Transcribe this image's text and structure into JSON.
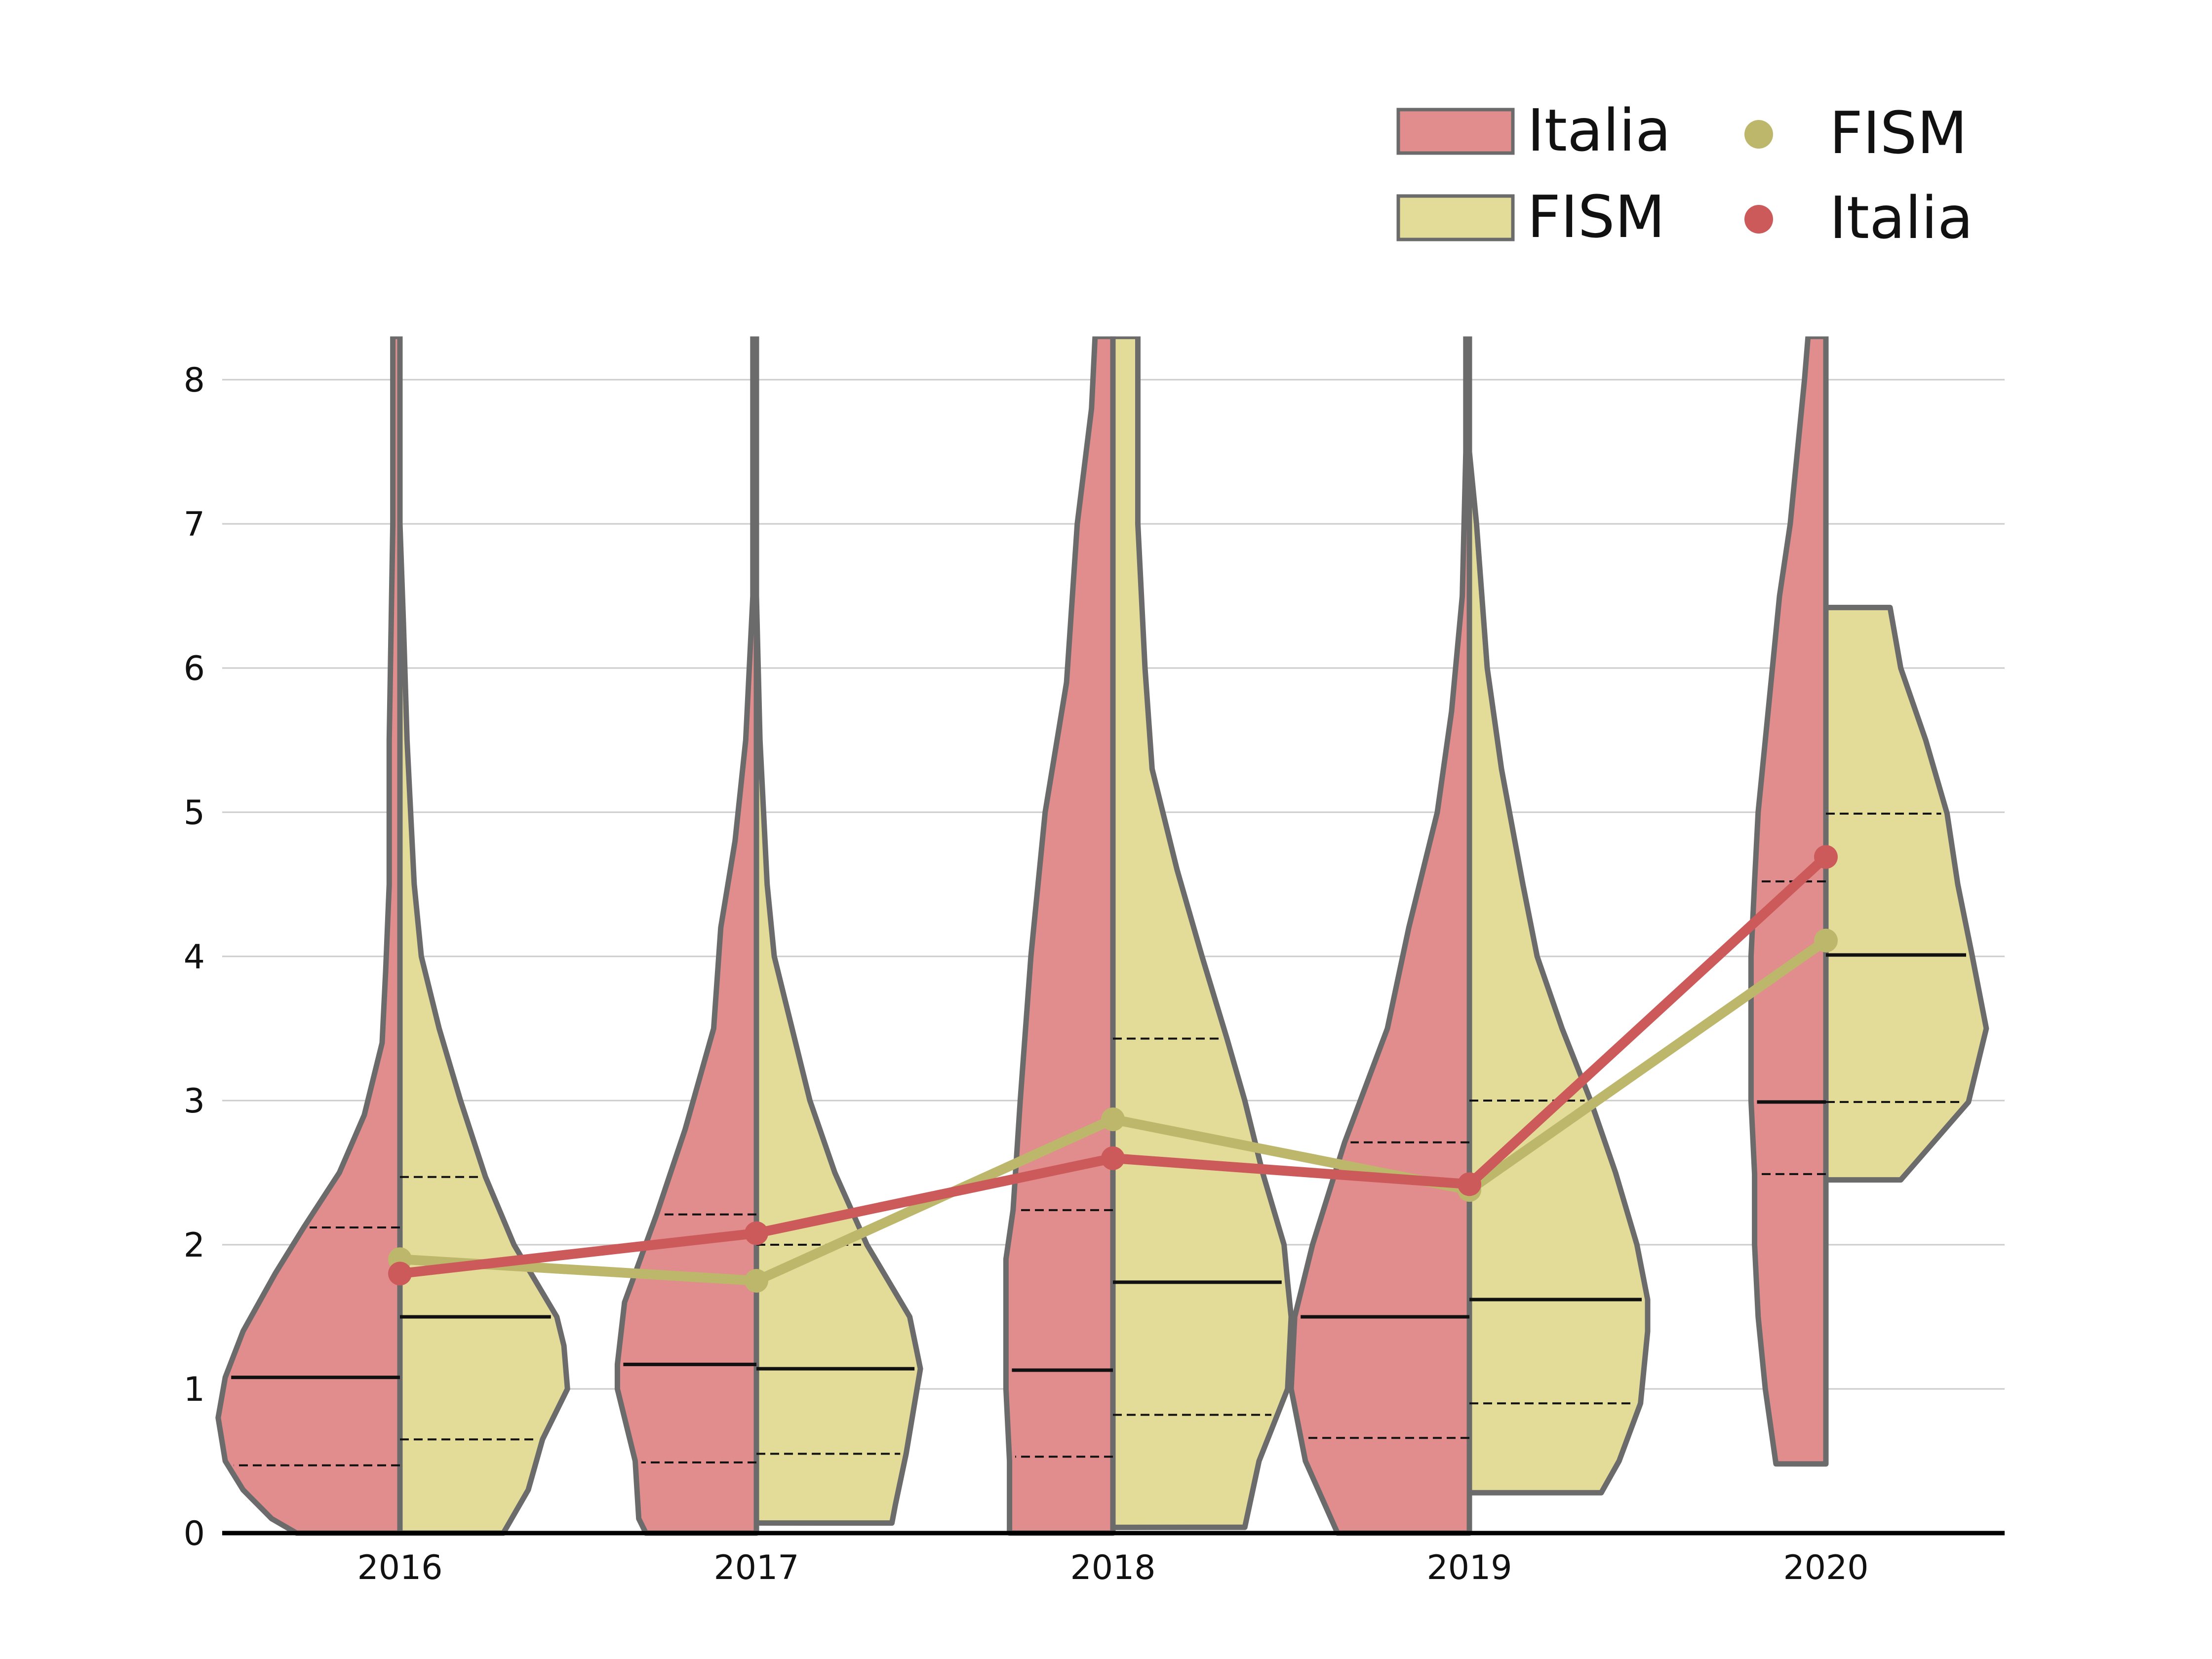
{
  "chart_data": {
    "type": "violin",
    "categories": [
      "2016",
      "2017",
      "2018",
      "2019",
      "2020"
    ],
    "ylim": [
      0,
      8.3
    ],
    "yticks": [
      "0",
      "1",
      "2",
      "3",
      "4",
      "5",
      "6",
      "7",
      "8"
    ],
    "grid": true,
    "legend_position": "top-right",
    "colors": {
      "italia_fill": "#e28d8d",
      "fism_fill": "#e2dc98",
      "violin_edge": "#6b6b6b",
      "italia_line": "#cd5a5a",
      "fism_line": "#bdb76b",
      "grid": "#cccccc",
      "axis": "#000000"
    },
    "legend": {
      "violins": [
        {
          "label": "Italia",
          "series": "italia"
        },
        {
          "label": "FISM",
          "series": "fism"
        }
      ],
      "lines": [
        {
          "label": "FISM",
          "series": "fism"
        },
        {
          "label": "Italia",
          "series": "italia"
        }
      ]
    },
    "mean_lines": [
      {
        "name": "Italia",
        "series": "italia",
        "values": [
          1.8,
          2.08,
          2.6,
          2.42,
          4.69
        ]
      },
      {
        "name": "FISM",
        "series": "fism",
        "values": [
          1.9,
          1.75,
          2.87,
          2.38,
          4.11
        ]
      }
    ],
    "violins": [
      {
        "category": "2016",
        "italia": {
          "quartiles": [
            0.47,
            1.08,
            2.12
          ],
          "profile": [
            [
              0,
              0.29
            ],
            [
              0.1,
              0.36
            ],
            [
              0.3,
              0.44
            ],
            [
              0.5,
              0.49
            ],
            [
              0.8,
              0.51
            ],
            [
              1.08,
              0.49
            ],
            [
              1.4,
              0.44
            ],
            [
              1.8,
              0.35
            ],
            [
              2.12,
              0.27
            ],
            [
              2.5,
              0.17
            ],
            [
              2.9,
              0.1
            ],
            [
              3.4,
              0.05
            ],
            [
              3.9,
              0.04
            ],
            [
              4.5,
              0.03
            ],
            [
              5.5,
              0.03
            ],
            [
              7,
              0.02
            ],
            [
              8.3,
              0.02
            ]
          ]
        },
        "fism": {
          "quartiles": [
            0.65,
            1.5,
            2.47
          ],
          "profile": [
            [
              0,
              0.29
            ],
            [
              0.3,
              0.36
            ],
            [
              0.65,
              0.4
            ],
            [
              1,
              0.47
            ],
            [
              1.3,
              0.46
            ],
            [
              1.5,
              0.44
            ],
            [
              2,
              0.32
            ],
            [
              2.47,
              0.24
            ],
            [
              3,
              0.17
            ],
            [
              3.5,
              0.11
            ],
            [
              4,
              0.06
            ],
            [
              4.5,
              0.04
            ],
            [
              5.5,
              0.02
            ],
            [
              6.3,
              0.01
            ],
            [
              7,
              0
            ]
          ]
        }
      },
      {
        "category": "2017",
        "italia": {
          "quartiles": [
            0.49,
            1.17,
            2.21
          ],
          "profile": [
            [
              0,
              0.31
            ],
            [
              0.1,
              0.33
            ],
            [
              0.5,
              0.34
            ],
            [
              1,
              0.39
            ],
            [
              1.17,
              0.39
            ],
            [
              1.6,
              0.37
            ],
            [
              2.21,
              0.28
            ],
            [
              2.8,
              0.2
            ],
            [
              3.5,
              0.12
            ],
            [
              4.2,
              0.1
            ],
            [
              4.8,
              0.06
            ],
            [
              5.5,
              0.03
            ],
            [
              6.5,
              0.01
            ],
            [
              8.3,
              0.01
            ]
          ]
        },
        "fism": {
          "quartiles": [
            0.55,
            1.14,
            2.0
          ],
          "profile": [
            [
              0.07,
              0.38
            ],
            [
              0.2,
              0.39
            ],
            [
              0.55,
              0.42
            ],
            [
              1.14,
              0.46
            ],
            [
              1.5,
              0.43
            ],
            [
              2,
              0.31
            ],
            [
              2.5,
              0.22
            ],
            [
              3,
              0.15
            ],
            [
              3.5,
              0.1
            ],
            [
              4,
              0.05
            ],
            [
              4.5,
              0.03
            ],
            [
              5.5,
              0.01
            ],
            [
              6.5,
              0
            ]
          ]
        }
      },
      {
        "category": "2018",
        "italia": {
          "quartiles": [
            0.53,
            1.13,
            2.24
          ],
          "profile": [
            [
              0,
              0.29
            ],
            [
              0.5,
              0.29
            ],
            [
              1,
              0.3
            ],
            [
              1.5,
              0.3
            ],
            [
              1.9,
              0.3
            ],
            [
              2.24,
              0.28
            ],
            [
              3,
              0.26
            ],
            [
              4,
              0.23
            ],
            [
              5,
              0.19
            ],
            [
              5.9,
              0.13
            ],
            [
              7,
              0.1
            ],
            [
              7.8,
              0.06
            ],
            [
              8.3,
              0.05
            ]
          ]
        },
        "fism": {
          "quartiles": [
            0.82,
            1.74,
            3.43
          ],
          "profile": [
            [
              0.04,
              0.37
            ],
            [
              0.5,
              0.41
            ],
            [
              1,
              0.49
            ],
            [
              1.5,
              0.5
            ],
            [
              1.74,
              0.49
            ],
            [
              2,
              0.48
            ],
            [
              2.5,
              0.42
            ],
            [
              3,
              0.37
            ],
            [
              3.43,
              0.32
            ],
            [
              4,
              0.25
            ],
            [
              4.6,
              0.18
            ],
            [
              5.3,
              0.11
            ],
            [
              6,
              0.09
            ],
            [
              7,
              0.07
            ],
            [
              8.3,
              0.07
            ]
          ]
        }
      },
      {
        "category": "2019",
        "italia": {
          "quartiles": [
            0.66,
            1.5,
            2.71
          ],
          "profile": [
            [
              0,
              0.37
            ],
            [
              0.5,
              0.46
            ],
            [
              1,
              0.5
            ],
            [
              1.5,
              0.49
            ],
            [
              2,
              0.44
            ],
            [
              2.71,
              0.35
            ],
            [
              3.5,
              0.23
            ],
            [
              4.2,
              0.17
            ],
            [
              5,
              0.09
            ],
            [
              5.7,
              0.05
            ],
            [
              6.5,
              0.02
            ],
            [
              7.5,
              0.01
            ],
            [
              8.3,
              0.01
            ]
          ]
        },
        "fism": {
          "quartiles": [
            0.9,
            1.62,
            3.0
          ],
          "profile": [
            [
              0.28,
              0.37
            ],
            [
              0.5,
              0.42
            ],
            [
              0.9,
              0.48
            ],
            [
              1.4,
              0.5
            ],
            [
              1.62,
              0.5
            ],
            [
              2,
              0.47
            ],
            [
              2.5,
              0.41
            ],
            [
              3,
              0.34
            ],
            [
              3.5,
              0.26
            ],
            [
              4,
              0.19
            ],
            [
              4.5,
              0.15
            ],
            [
              5.3,
              0.09
            ],
            [
              6,
              0.05
            ],
            [
              7,
              0.02
            ],
            [
              7.5,
              0
            ]
          ]
        }
      },
      {
        "category": "2020",
        "italia": {
          "quartiles": [
            2.49,
            2.99,
            4.52
          ],
          "profile": [
            [
              0.48,
              0.14
            ],
            [
              1,
              0.17
            ],
            [
              1.5,
              0.19
            ],
            [
              2,
              0.2
            ],
            [
              2.49,
              0.2
            ],
            [
              3,
              0.21
            ],
            [
              3.5,
              0.21
            ],
            [
              4,
              0.21
            ],
            [
              4.52,
              0.2
            ],
            [
              5,
              0.19
            ],
            [
              5.5,
              0.17
            ],
            [
              6,
              0.15
            ],
            [
              6.5,
              0.13
            ],
            [
              7,
              0.1
            ],
            [
              7.5,
              0.08
            ],
            [
              8,
              0.06
            ],
            [
              8.3,
              0.05
            ]
          ]
        },
        "fism": {
          "quartiles": [
            2.99,
            4.01,
            4.99
          ],
          "profile": [
            [
              2.45,
              0.21
            ],
            [
              2.99,
              0.4
            ],
            [
              3.5,
              0.45
            ],
            [
              4.01,
              0.41
            ],
            [
              4.5,
              0.37
            ],
            [
              4.99,
              0.34
            ],
            [
              5.5,
              0.28
            ],
            [
              6,
              0.21
            ],
            [
              6.42,
              0.18
            ]
          ]
        }
      }
    ]
  }
}
